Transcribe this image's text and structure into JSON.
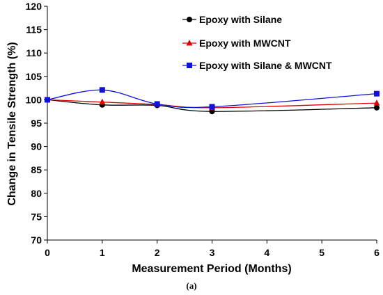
{
  "chart_data": {
    "type": "line",
    "xlabel": "Measurement Period (Months)",
    "ylabel": "Change in Tensile Strength (%)",
    "caption": "(a)",
    "xlim": [
      0,
      6
    ],
    "ylim": [
      70,
      120
    ],
    "x_ticks": [
      0,
      1,
      2,
      3,
      4,
      5,
      6
    ],
    "y_ticks": [
      70,
      75,
      80,
      85,
      90,
      95,
      100,
      105,
      110,
      115,
      120
    ],
    "grid": false,
    "legend_position": "top-right",
    "x": [
      0,
      1,
      2,
      3,
      6
    ],
    "series": [
      {
        "name": "Epoxy with Silane",
        "color": "#000000",
        "marker": "circle",
        "values": [
          100,
          98.9,
          98.8,
          97.5,
          98.3
        ]
      },
      {
        "name": "Epoxy with MWCNT",
        "color": "#e00000",
        "marker": "triangle",
        "values": [
          100,
          99.5,
          99.0,
          98.3,
          99.3
        ]
      },
      {
        "name": "Epoxy with Silane & MWCNT",
        "color": "#1010e0",
        "marker": "square",
        "values": [
          100,
          102.1,
          99.1,
          98.5,
          101.3
        ]
      }
    ]
  }
}
